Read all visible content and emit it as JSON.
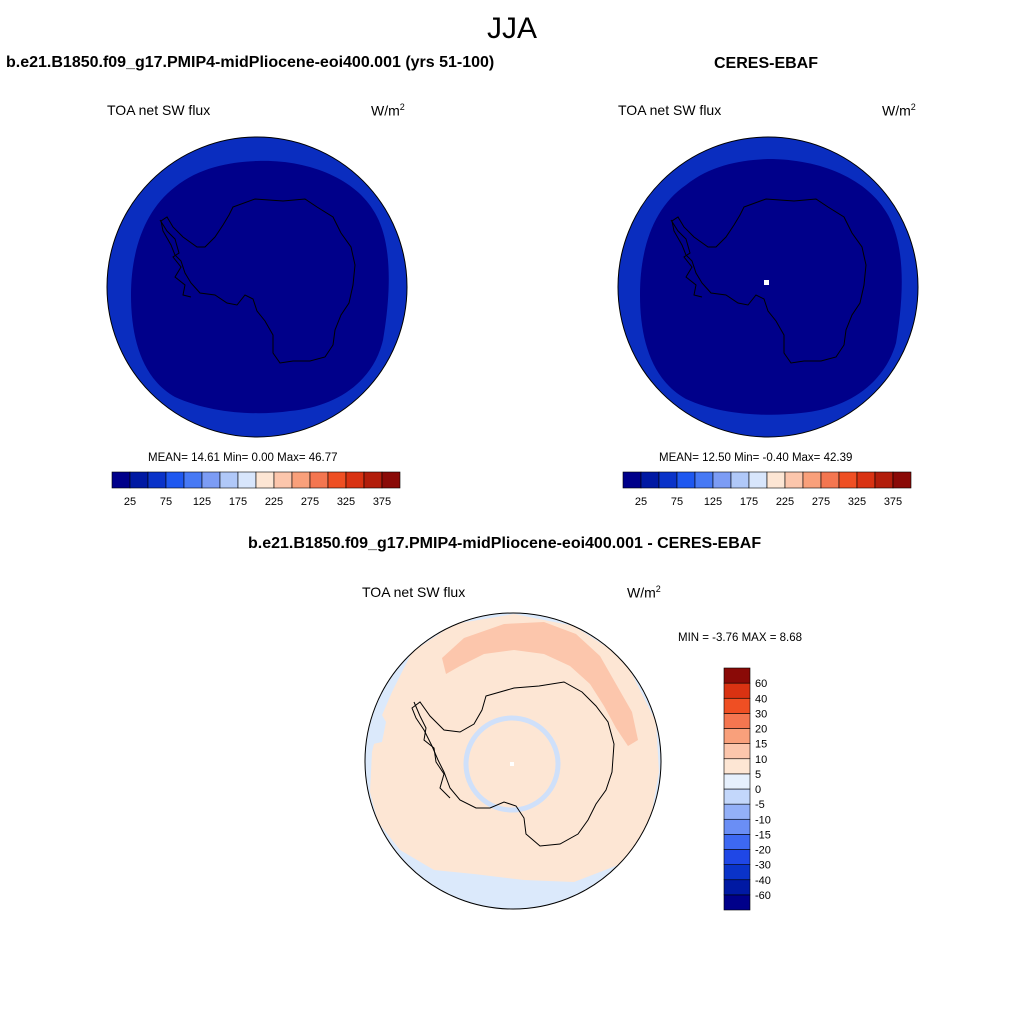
{
  "supertitle": "JJA",
  "panels": [
    {
      "title": "b.e21.B1850.f09_g17.PMIP4-midPliocene-eoi400.001 (yrs 51-100)",
      "variable": "TOA net SW flux",
      "units_base": "W/m",
      "units_exp": "2",
      "stats": "MEAN=  14.61  Min=   0.00  Max=  46.77"
    },
    {
      "title": "CERES-EBAF",
      "variable": "TOA net SW flux",
      "units_base": "W/m",
      "units_exp": "2",
      "stats": "MEAN=  12.50  Min=  -0.40  Max=  42.39"
    },
    {
      "title": "b.e21.B1850.f09_g17.PMIP4-midPliocene-eoi400.001 - CERES-EBAF",
      "variable": "TOA net SW flux",
      "units_base": "W/m",
      "units_exp": "2",
      "stats": "MIN =  -3.76 MAX =   8.68"
    }
  ],
  "chart_data": [
    {
      "type": "heatmap",
      "projection": "south polar stereographic",
      "title": "b.e21.B1850.f09_g17.PMIP4-midPliocene-eoi400.001 (yrs 51-100)",
      "variable": "TOA net SW flux",
      "units": "W/m2",
      "mean": 14.61,
      "min": 0.0,
      "max": 46.77,
      "colorbar": {
        "orientation": "horizontal",
        "tick_labels": [
          "25",
          "75",
          "125",
          "175",
          "225",
          "275",
          "325",
          "375"
        ],
        "colors": [
          "#00008a",
          "#0019a3",
          "#0a33c9",
          "#1f58f0",
          "#4779f5",
          "#7c9cf5",
          "#b0c8f8",
          "#d8e6fc",
          "#fde6d4",
          "#fcc6ac",
          "#f9a07b",
          "#f47650",
          "#ef4f23",
          "#d93212",
          "#b21d0b",
          "#8a0a07"
        ]
      },
      "fields": [
        {
          "region": "polar cap (inside ~55S)",
          "color": "#00008a"
        },
        {
          "region": "outer ring",
          "color": "#0a2dbf"
        }
      ]
    },
    {
      "type": "heatmap",
      "projection": "south polar stereographic",
      "title": "CERES-EBAF",
      "variable": "TOA net SW flux",
      "units": "W/m2",
      "mean": 12.5,
      "min": -0.4,
      "max": 42.39,
      "colorbar": {
        "orientation": "horizontal",
        "tick_labels": [
          "25",
          "75",
          "125",
          "175",
          "225",
          "275",
          "325",
          "375"
        ],
        "colors": [
          "#00008a",
          "#0019a3",
          "#0a33c9",
          "#1f58f0",
          "#4779f5",
          "#7c9cf5",
          "#b0c8f8",
          "#d8e6fc",
          "#fde6d4",
          "#fcc6ac",
          "#f9a07b",
          "#f47650",
          "#ef4f23",
          "#d93212",
          "#b21d0b",
          "#8a0a07"
        ]
      },
      "fields": [
        {
          "region": "polar cap (inside ~55S)",
          "color": "#00008a"
        },
        {
          "region": "outer ring",
          "color": "#0a2dbf"
        },
        {
          "region": "pole (missing)",
          "color": "#ffffff"
        }
      ]
    },
    {
      "type": "heatmap",
      "projection": "south polar stereographic",
      "title": "b.e21.B1850.f09_g17.PMIP4-midPliocene-eoi400.001 - CERES-EBAF",
      "variable": "TOA net SW flux",
      "units": "W/m2",
      "min": -3.76,
      "max": 8.68,
      "colorbar": {
        "orientation": "vertical",
        "tick_labels": [
          "-60",
          "-40",
          "-30",
          "-20",
          "-15",
          "-10",
          "-5",
          "0",
          "5",
          "10",
          "15",
          "20",
          "30",
          "40",
          "60"
        ],
        "colors": [
          "#00008a",
          "#0019a3",
          "#0a33c9",
          "#1f47e6",
          "#3d68f2",
          "#6a8ef5",
          "#93b0f8",
          "#c3d7fb",
          "#e6f0fd",
          "#fde6d4",
          "#fcc6ac",
          "#f9a07b",
          "#f47650",
          "#ef4f23",
          "#d93212",
          "#8a0a07"
        ]
      },
      "fields": [
        {
          "region": "most of domain",
          "value_range": "0 to 5",
          "color": "#fde6d4"
        },
        {
          "region": "Pacific-sector band 55-65S",
          "value_range": "5 to 10",
          "color": "#fcc6ac"
        },
        {
          "region": "outer edges near 45S",
          "value_range": "-5 to 0",
          "color": "#dbe9fb"
        },
        {
          "region": "ring around pole",
          "value_range": "-5 to 0",
          "color": "#cfe0fa"
        }
      ]
    }
  ]
}
